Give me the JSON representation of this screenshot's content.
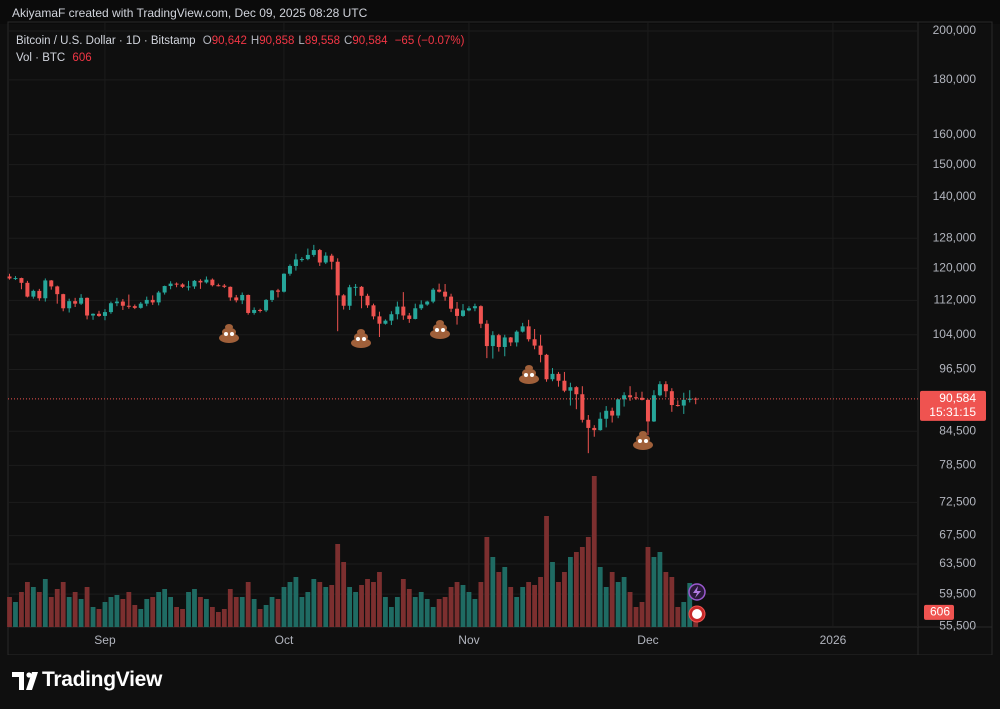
{
  "header": {
    "author": "AkiyamaF created with TradingView.com, Dec 09, 2025 08:28 UTC",
    "brand": "TradingView"
  },
  "chart_data": {
    "type": "candlestick",
    "title": "Bitcoin / U.S. Dollar · 1D · Bitstamp",
    "ohlc_legend": [
      {
        "key": "O",
        "value": "90,642"
      },
      {
        "key": "H",
        "value": "90,858"
      },
      {
        "key": "L",
        "value": "89,558"
      },
      {
        "key": "C",
        "value": "90,584"
      }
    ],
    "change": "−65 (−0.07%)",
    "volume_title": "Vol · BTC",
    "last_price_label": "90,584",
    "countdown": "15:31:15",
    "log_scale": true,
    "grid": true,
    "up_color": "#26a69a",
    "down_color": "#ef5350",
    "volume_up_color": "#1f6b63",
    "volume_down_color": "#7c2f2f",
    "ylim": [
      55440,
      203900
    ],
    "yticks": [
      {
        "value": 200000,
        "label": "200,000"
      },
      {
        "value": 180000,
        "label": "180,000"
      },
      {
        "value": 160000,
        "label": "160,000"
      },
      {
        "value": 150000,
        "label": "150,000"
      },
      {
        "value": 140000,
        "label": "140,000"
      },
      {
        "value": 128000,
        "label": "128,000"
      },
      {
        "value": 120000,
        "label": "120,000"
      },
      {
        "value": 112000,
        "label": "112,000"
      },
      {
        "value": 104000,
        "label": "104,000"
      },
      {
        "value": 96500,
        "label": "96,500"
      },
      {
        "value": 84500,
        "label": "84,500"
      },
      {
        "value": 78500,
        "label": "78,500"
      },
      {
        "value": 72500,
        "label": "72,500"
      },
      {
        "value": 67500,
        "label": "67,500"
      },
      {
        "value": 63500,
        "label": "63,500"
      },
      {
        "value": 59500,
        "label": "59,500"
      },
      {
        "value": 55500,
        "label": "55,500"
      }
    ],
    "categories": [
      null,
      null,
      null,
      null,
      null,
      null,
      null,
      null,
      null,
      null,
      null,
      null,
      null,
      null,
      null,
      null,
      "Sep",
      null,
      null,
      null,
      null,
      null,
      null,
      null,
      null,
      null,
      null,
      null,
      null,
      null,
      null,
      null,
      null,
      null,
      null,
      null,
      null,
      null,
      null,
      null,
      null,
      null,
      null,
      null,
      null,
      null,
      "Oct",
      null,
      null,
      null,
      null,
      null,
      null,
      null,
      null,
      null,
      null,
      null,
      null,
      null,
      null,
      null,
      null,
      null,
      null,
      null,
      null,
      null,
      null,
      null,
      null,
      null,
      null,
      null,
      null,
      null,
      null,
      "Nov",
      null,
      null,
      null,
      null,
      null,
      null,
      null,
      null,
      null,
      null,
      null,
      null,
      null,
      null,
      null,
      null,
      null,
      null,
      null,
      null,
      null,
      null,
      null,
      null,
      null,
      null,
      null,
      null,
      null,
      "Dec",
      null,
      null,
      null,
      null,
      null,
      null,
      null,
      null,
      null,
      null,
      null,
      null,
      null,
      null,
      null,
      null,
      null,
      null,
      null,
      null,
      null,
      null,
      null,
      null,
      null,
      null,
      null,
      null,
      null,
      null,
      "2026"
    ],
    "open": [
      117900,
      117400,
      117500,
      116300,
      112900,
      114300,
      112500,
      116900,
      115400,
      113500,
      110100,
      111800,
      111200,
      112600,
      108400,
      108800,
      108300,
      109200,
      111300,
      111700,
      110700,
      110600,
      110200,
      111200,
      112100,
      111500,
      113900,
      115500,
      116100,
      115900,
      115300,
      115400,
      116800,
      116400,
      117100,
      115700,
      115600,
      115300,
      112700,
      112000,
      113300,
      109000,
      109700,
      109600,
      112100,
      114400,
      114100,
      118600,
      120600,
      122300,
      122400,
      123500,
      124800,
      121500,
      123300,
      121700,
      113200,
      110700,
      115200,
      115300,
      113100,
      110800,
      108200,
      106500,
      107200,
      108700,
      110500,
      108400,
      107600,
      110100,
      111000,
      111700,
      114600,
      114100,
      112900,
      110000,
      108300,
      109600,
      110100,
      110600,
      106500,
      101500,
      103900,
      101300,
      103400,
      102300,
      104700,
      105900,
      103000,
      101600,
      99600,
      94500,
      95600,
      94200,
      92200,
      92900,
      91500,
      86600,
      85100,
      84700,
      86800,
      88300,
      87400,
      90500,
      91300,
      90900,
      90800,
      90400,
      86300,
      91300,
      93500,
      92100,
      89400,
      89300,
      90400,
      90642,
      null,
      null,
      null,
      null,
      null,
      null,
      null,
      null,
      null,
      null,
      null,
      null,
      null,
      null,
      null,
      null,
      null,
      null,
      null,
      null,
      null,
      null,
      null
    ],
    "high": [
      118600,
      118000,
      117600,
      116800,
      114600,
      114800,
      117400,
      117000,
      115600,
      113600,
      112400,
      112600,
      113500,
      112700,
      108900,
      109500,
      109900,
      111700,
      112600,
      112300,
      113400,
      111000,
      111600,
      112900,
      113200,
      114300,
      115600,
      116700,
      116400,
      116200,
      116800,
      117000,
      117200,
      117900,
      117400,
      116100,
      116000,
      115400,
      113300,
      113900,
      113400,
      110300,
      110000,
      112300,
      114500,
      114800,
      118700,
      121000,
      123800,
      122900,
      125200,
      126200,
      125100,
      124200,
      123800,
      122600,
      113500,
      115800,
      116000,
      115500,
      113600,
      111200,
      109300,
      107500,
      109400,
      111700,
      114000,
      109000,
      111200,
      112000,
      111900,
      115000,
      116100,
      116000,
      113600,
      111600,
      111100,
      110600,
      111200,
      110800,
      107300,
      104800,
      104200,
      104000,
      103500,
      105000,
      106700,
      107400,
      105300,
      104000,
      99800,
      96800,
      96000,
      96000,
      93800,
      93100,
      93100,
      87500,
      85600,
      88000,
      89200,
      88900,
      90600,
      91900,
      93100,
      91900,
      92000,
      90500,
      92300,
      94100,
      94100,
      92700,
      90300,
      91800,
      92300,
      90858,
      null,
      null,
      null,
      null,
      null,
      null,
      null,
      null,
      null,
      null,
      null,
      null,
      null,
      null,
      null,
      null,
      null,
      null,
      null,
      null,
      null,
      null,
      null
    ],
    "low": [
      117100,
      117000,
      114700,
      112700,
      112400,
      111900,
      111700,
      114600,
      111200,
      109400,
      109100,
      110400,
      110900,
      107500,
      107400,
      108100,
      107300,
      108800,
      110600,
      109700,
      110000,
      109900,
      110000,
      110600,
      110900,
      110800,
      113400,
      114700,
      115200,
      115000,
      114400,
      114800,
      114800,
      116100,
      115400,
      115400,
      115000,
      111900,
      111500,
      111100,
      108600,
      108600,
      109100,
      109200,
      111600,
      112700,
      113900,
      118100,
      119400,
      121700,
      122100,
      123000,
      120600,
      121100,
      119700,
      104800,
      109800,
      109700,
      113100,
      110100,
      110200,
      107500,
      103500,
      106300,
      106200,
      107500,
      107400,
      106700,
      107500,
      109700,
      110700,
      111300,
      113900,
      111900,
      109200,
      106300,
      108100,
      109400,
      109400,
      105500,
      98900,
      98800,
      100300,
      99300,
      101500,
      101400,
      104500,
      102500,
      100800,
      98000,
      94000,
      94100,
      93000,
      91900,
      89300,
      88600,
      86100,
      80600,
      83500,
      84600,
      85200,
      86100,
      86900,
      89100,
      90200,
      90400,
      90300,
      83800,
      86200,
      91100,
      90900,
      88100,
      89100,
      87700,
      89900,
      89558,
      null,
      null,
      null,
      null,
      null,
      null,
      null,
      null,
      null,
      null,
      null,
      null,
      null,
      null,
      null,
      null,
      null,
      null,
      null,
      null,
      null,
      null,
      null
    ],
    "close": [
      117400,
      117500,
      116300,
      112900,
      114300,
      112500,
      116900,
      115400,
      113500,
      110100,
      111800,
      111200,
      112600,
      108400,
      108800,
      108300,
      109200,
      111300,
      111700,
      110700,
      110600,
      110200,
      111200,
      112100,
      111500,
      113900,
      115500,
      116100,
      115900,
      115300,
      115400,
      116800,
      116400,
      117100,
      115700,
      115600,
      115300,
      112700,
      112000,
      113300,
      109000,
      109700,
      109600,
      112100,
      114400,
      114100,
      118600,
      120600,
      122300,
      122400,
      123500,
      124800,
      121500,
      123300,
      121700,
      113200,
      110700,
      115200,
      115300,
      113100,
      110800,
      108200,
      106500,
      107200,
      108700,
      110500,
      108400,
      107600,
      110100,
      111000,
      111700,
      114600,
      114100,
      112900,
      110000,
      108300,
      109600,
      110100,
      110600,
      106500,
      101500,
      103900,
      101300,
      103400,
      102300,
      104700,
      105900,
      103000,
      101600,
      99600,
      94500,
      95600,
      94200,
      92200,
      92900,
      91500,
      86600,
      85100,
      84700,
      86800,
      88300,
      87400,
      90500,
      91300,
      90900,
      90800,
      90400,
      86300,
      91300,
      93500,
      92100,
      89400,
      89300,
      90400,
      90642,
      90584,
      null,
      null,
      null,
      null,
      null,
      null,
      null,
      null,
      null,
      null,
      null,
      null,
      null,
      null,
      null,
      null,
      null,
      null,
      null,
      null,
      null,
      null,
      null
    ],
    "volume_lim": [
      0,
      6400
    ],
    "volume": [
      1200,
      1000,
      1400,
      1800,
      1600,
      1400,
      1920,
      1200,
      1520,
      1800,
      1200,
      1400,
      1120,
      1600,
      800,
      720,
      1000,
      1200,
      1280,
      1120,
      1400,
      880,
      720,
      1120,
      1200,
      1400,
      1520,
      1200,
      800,
      720,
      1400,
      1520,
      1200,
      1120,
      800,
      600,
      720,
      1520,
      1200,
      1200,
      1800,
      1120,
      720,
      880,
      1200,
      1120,
      1600,
      1800,
      2000,
      1200,
      1400,
      1920,
      1800,
      1600,
      1680,
      3320,
      2600,
      1600,
      1400,
      1680,
      1920,
      1800,
      2200,
      1200,
      800,
      1200,
      1920,
      1520,
      1200,
      1400,
      1120,
      800,
      1120,
      1200,
      1600,
      1800,
      1680,
      1400,
      1120,
      1800,
      3600,
      2800,
      2200,
      2400,
      1600,
      1200,
      1600,
      1800,
      1680,
      2000,
      4440,
      2600,
      1800,
      2200,
      2800,
      3000,
      3200,
      3600,
      6040,
      2400,
      1600,
      2200,
      1800,
      2000,
      1400,
      800,
      1000,
      3200,
      2800,
      3000,
      2200,
      2000,
      800,
      1000,
      1760,
      606,
      null,
      null,
      null,
      null,
      null,
      null,
      null,
      null,
      null,
      null,
      null,
      null,
      null,
      null,
      null,
      null,
      null,
      null,
      null,
      null,
      null,
      null,
      null
    ]
  }
}
